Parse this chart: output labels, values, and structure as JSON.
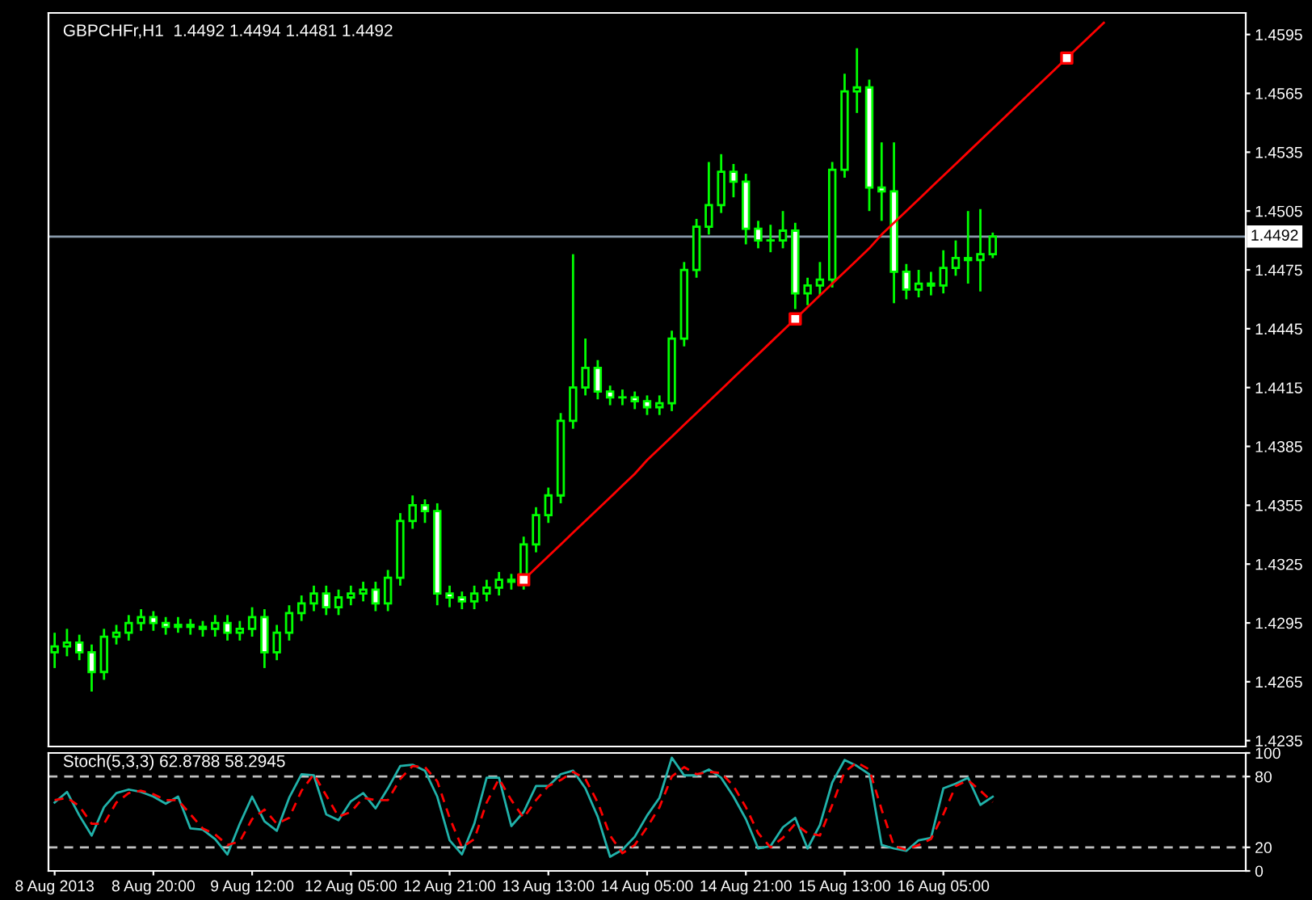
{
  "chart_data": [
    {
      "type": "candlestick",
      "title": "GBPCHFr,H1  1.4492 1.4494 1.4481 1.4492",
      "color": "#00ff00",
      "categories": [
        null,
        null,
        null,
        null,
        null,
        null,
        null,
        null,
        null,
        null,
        null,
        null,
        null,
        null,
        null,
        null,
        null,
        null,
        null,
        null,
        null,
        null,
        null,
        null,
        null,
        null,
        null,
        null,
        null,
        null,
        null,
        null,
        null,
        null,
        null,
        null,
        null,
        null,
        null,
        null,
        null,
        null,
        null,
        null,
        null,
        null,
        null,
        null,
        null,
        null,
        null,
        null,
        null,
        null,
        null,
        null,
        null,
        null,
        null,
        null,
        null,
        null,
        null,
        null,
        null,
        null,
        null,
        null,
        null,
        null,
        null,
        null,
        null,
        null,
        null,
        null,
        null,
        null,
        null,
        null,
        null,
        null,
        null,
        null,
        null,
        null,
        null,
        null,
        null,
        null,
        null,
        null,
        null,
        null,
        null,
        null,
        null
      ],
      "ohlc": [
        [
          1.428,
          1.429,
          1.4272,
          1.4283
        ],
        [
          1.4283,
          1.4292,
          1.4278,
          1.4285
        ],
        [
          1.4285,
          1.4289,
          1.4276,
          1.428
        ],
        [
          1.428,
          1.4284,
          1.426,
          1.427
        ],
        [
          1.427,
          1.4292,
          1.4266,
          1.4288
        ],
        [
          1.4288,
          1.4294,
          1.4284,
          1.429
        ],
        [
          1.429,
          1.4299,
          1.4286,
          1.4295
        ],
        [
          1.4295,
          1.4302,
          1.4291,
          1.4298
        ],
        [
          1.4298,
          1.4301,
          1.4291,
          1.4295
        ],
        [
          1.4295,
          1.4298,
          1.4289,
          1.4293
        ],
        [
          1.4293,
          1.4298,
          1.429,
          1.4294
        ],
        [
          1.4294,
          1.4297,
          1.4289,
          1.4293
        ],
        [
          1.4293,
          1.4296,
          1.4288,
          1.4292
        ],
        [
          1.4292,
          1.4299,
          1.4288,
          1.4295
        ],
        [
          1.4295,
          1.4299,
          1.4286,
          1.429
        ],
        [
          1.429,
          1.4296,
          1.4286,
          1.4292
        ],
        [
          1.4292,
          1.4303,
          1.4288,
          1.4298
        ],
        [
          1.4298,
          1.4302,
          1.4272,
          1.428
        ],
        [
          1.428,
          1.4294,
          1.4276,
          1.429
        ],
        [
          1.429,
          1.4304,
          1.4286,
          1.43
        ],
        [
          1.43,
          1.4309,
          1.4296,
          1.4305
        ],
        [
          1.4305,
          1.4314,
          1.4301,
          1.431
        ],
        [
          1.431,
          1.4314,
          1.4299,
          1.4303
        ],
        [
          1.4303,
          1.4312,
          1.4299,
          1.4308
        ],
        [
          1.4308,
          1.4314,
          1.4304,
          1.431
        ],
        [
          1.431,
          1.4316,
          1.4306,
          1.4312
        ],
        [
          1.4312,
          1.4316,
          1.4301,
          1.4305
        ],
        [
          1.4305,
          1.4322,
          1.4301,
          1.4318
        ],
        [
          1.4318,
          1.4351,
          1.4314,
          1.4347
        ],
        [
          1.4347,
          1.436,
          1.4343,
          1.4355
        ],
        [
          1.4355,
          1.4358,
          1.4346,
          1.4352
        ],
        [
          1.4352,
          1.4356,
          1.4304,
          1.431
        ],
        [
          1.431,
          1.4314,
          1.4303,
          1.4308
        ],
        [
          1.4308,
          1.4311,
          1.4302,
          1.4306
        ],
        [
          1.4306,
          1.4314,
          1.4302,
          1.431
        ],
        [
          1.431,
          1.4317,
          1.4306,
          1.4313
        ],
        [
          1.4313,
          1.4321,
          1.4309,
          1.4317
        ],
        [
          1.4317,
          1.432,
          1.4312,
          1.4316
        ],
        [
          1.4316,
          1.4339,
          1.4312,
          1.4335
        ],
        [
          1.4335,
          1.4354,
          1.4331,
          1.435
        ],
        [
          1.435,
          1.4364,
          1.4346,
          1.436
        ],
        [
          1.436,
          1.4402,
          1.4356,
          1.4398
        ],
        [
          1.4398,
          1.4483,
          1.4394,
          1.4415
        ],
        [
          1.4415,
          1.444,
          1.4411,
          1.4425
        ],
        [
          1.4425,
          1.4429,
          1.4409,
          1.4413
        ],
        [
          1.4413,
          1.4416,
          1.4406,
          1.441
        ],
        [
          1.441,
          1.4414,
          1.4406,
          1.441
        ],
        [
          1.441,
          1.4413,
          1.4404,
          1.4408
        ],
        [
          1.4408,
          1.4411,
          1.4401,
          1.4405
        ],
        [
          1.4405,
          1.4411,
          1.4401,
          1.4407
        ],
        [
          1.4407,
          1.4444,
          1.4403,
          1.444
        ],
        [
          1.444,
          1.4479,
          1.4436,
          1.4475
        ],
        [
          1.4475,
          1.4501,
          1.4471,
          1.4497
        ],
        [
          1.4497,
          1.453,
          1.4493,
          1.4508
        ],
        [
          1.4508,
          1.4534,
          1.4504,
          1.4525
        ],
        [
          1.4525,
          1.4529,
          1.4512,
          1.452
        ],
        [
          1.452,
          1.4524,
          1.4488,
          1.4496
        ],
        [
          1.4496,
          1.45,
          1.4486,
          1.449
        ],
        [
          1.449,
          1.4498,
          1.4484,
          1.449
        ],
        [
          1.449,
          1.4505,
          1.4486,
          1.4495
        ],
        [
          1.4495,
          1.4499,
          1.4455,
          1.4463
        ],
        [
          1.4463,
          1.4471,
          1.4457,
          1.4467
        ],
        [
          1.4467,
          1.4479,
          1.4462,
          1.447
        ],
        [
          1.447,
          1.453,
          1.4466,
          1.4526
        ],
        [
          1.4526,
          1.4575,
          1.4522,
          1.4566
        ],
        [
          1.4566,
          1.4588,
          1.4555,
          1.4568
        ],
        [
          1.4568,
          1.4572,
          1.4505,
          1.4517
        ],
        [
          1.4517,
          1.454,
          1.45,
          1.4515
        ],
        [
          1.4515,
          1.454,
          1.4458,
          1.4474
        ],
        [
          1.4474,
          1.4478,
          1.446,
          1.4465
        ],
        [
          1.4465,
          1.4475,
          1.4461,
          1.4468
        ],
        [
          1.4468,
          1.4474,
          1.4462,
          1.4467
        ],
        [
          1.4467,
          1.4485,
          1.4463,
          1.4476
        ],
        [
          1.4476,
          1.449,
          1.4472,
          1.4481
        ],
        [
          1.4481,
          1.4505,
          1.4468,
          1.448
        ],
        [
          1.448,
          1.4506,
          1.4464,
          1.4483
        ],
        [
          1.4483,
          1.4494,
          1.4481,
          1.4492
        ],
        null,
        null,
        null,
        null,
        null,
        null,
        null,
        null,
        null,
        null,
        null,
        null,
        null,
        null,
        null,
        null,
        null,
        null,
        null,
        null
      ],
      "series": [
        {
          "type": "line",
          "color": "#ff0000",
          "values": [
            null,
            null,
            null,
            null,
            null,
            null,
            null,
            null,
            null,
            null,
            null,
            null,
            null,
            null,
            null,
            null,
            null,
            null,
            null,
            null,
            null,
            null,
            null,
            null,
            null,
            null,
            null,
            null,
            null,
            null,
            null,
            null,
            null,
            null,
            null,
            null,
            null,
            null,
            1.4317,
            1.4323,
            1.4329,
            1.4335,
            1.4341,
            1.4347,
            1.4353,
            1.4359,
            1.4365,
            1.4371,
            1.4378,
            1.4384,
            1.439,
            1.4396,
            1.4402,
            1.4408,
            1.4414,
            1.442,
            1.4426,
            1.4432,
            1.4438,
            1.4444,
            1.445,
            1.4456,
            1.4462,
            1.4468,
            1.4474,
            1.448,
            1.4486,
            1.4493,
            1.4499,
            1.4505,
            1.4511,
            1.4517,
            1.4523,
            1.4529,
            1.4535,
            1.4541,
            1.4547,
            1.4553,
            1.4559,
            1.4565,
            1.4571,
            1.4577,
            1.4583,
            1.4589,
            1.4595,
            1.4601,
            null,
            null,
            null,
            null,
            null,
            null,
            null,
            null,
            null,
            null,
            null
          ]
        },
        {
          "type": "scatter",
          "color": "#ff0000",
          "marker": "square",
          "values": [
            null,
            null,
            null,
            null,
            null,
            null,
            null,
            null,
            null,
            null,
            null,
            null,
            null,
            null,
            null,
            null,
            null,
            null,
            null,
            null,
            null,
            null,
            null,
            null,
            null,
            null,
            null,
            null,
            null,
            null,
            null,
            null,
            null,
            null,
            null,
            null,
            null,
            null,
            1.4317,
            null,
            null,
            null,
            null,
            null,
            null,
            null,
            null,
            null,
            null,
            null,
            null,
            null,
            null,
            null,
            null,
            null,
            null,
            null,
            null,
            null,
            1.445,
            null,
            null,
            null,
            null,
            null,
            null,
            null,
            null,
            null,
            null,
            null,
            null,
            null,
            null,
            null,
            null,
            null,
            null,
            null,
            null,
            null,
            1.4583,
            null,
            null,
            null,
            null,
            null,
            null,
            null,
            null,
            null,
            null,
            null,
            null,
            null,
            null
          ]
        }
      ],
      "ylim": [
        1.4232,
        1.4606
      ],
      "yticks": [
        1.4235,
        1.4265,
        1.4295,
        1.4325,
        1.4355,
        1.4385,
        1.4415,
        1.4445,
        1.4475,
        1.4505,
        1.4535,
        1.4565,
        1.4595
      ],
      "ref_lines": [
        {
          "axis": "y",
          "value": 1.4492,
          "label": "1.4492",
          "color": "#8899aa"
        }
      ],
      "tick_labels": "y"
    },
    {
      "type": "line",
      "title": "Stoch(5,3,3) 62.8788 58.2945",
      "categories": [
        "8 Aug 2013",
        null,
        null,
        null,
        null,
        null,
        null,
        null,
        "8 Aug 20:00",
        null,
        null,
        null,
        null,
        null,
        null,
        null,
        "9 Aug 12:00",
        null,
        null,
        null,
        null,
        null,
        null,
        null,
        "12 Aug 05:00",
        null,
        null,
        null,
        null,
        null,
        null,
        null,
        "12 Aug 21:00",
        null,
        null,
        null,
        null,
        null,
        null,
        null,
        "13 Aug 13:00",
        null,
        null,
        null,
        null,
        null,
        null,
        null,
        "14 Aug 05:00",
        null,
        null,
        null,
        null,
        null,
        null,
        null,
        "14 Aug 21:00",
        null,
        null,
        null,
        null,
        null,
        null,
        null,
        "15 Aug 13:00",
        null,
        null,
        null,
        null,
        null,
        null,
        null,
        "16 Aug 05:00",
        null,
        null,
        null,
        null,
        null,
        null,
        null,
        null,
        null,
        null,
        null,
        null,
        null,
        null,
        null,
        null,
        null,
        null,
        null,
        null,
        null,
        null,
        null,
        null
      ],
      "series": [
        {
          "color": "#20b2aa",
          "line_style": "solid",
          "values": [
            58,
            67,
            47,
            30,
            54,
            66,
            69,
            67,
            63,
            57,
            63,
            36,
            35,
            27,
            14,
            40,
            63,
            42,
            34,
            62,
            82,
            81,
            48,
            43,
            59,
            66,
            53,
            70,
            89,
            90,
            85,
            63,
            26,
            14,
            40,
            79,
            79,
            38,
            50,
            72,
            72,
            82,
            85,
            70,
            46,
            12,
            18,
            29,
            47,
            62,
            96,
            81,
            81,
            86,
            79,
            63,
            44,
            19,
            21,
            37,
            45,
            19,
            39,
            75,
            94,
            89,
            82,
            22,
            19,
            17,
            26,
            28,
            70,
            74,
            79,
            56,
            62.8788,
            null,
            null,
            null,
            null,
            null,
            null,
            null,
            null,
            null,
            null,
            null,
            null,
            null,
            null,
            null,
            null,
            null,
            null,
            null,
            null
          ]
        },
        {
          "color": "#ff0000",
          "line_style": "dashed",
          "values": [
            60,
            62,
            55,
            40,
            40,
            58,
            66,
            68,
            65,
            60,
            60,
            48,
            36,
            31,
            22,
            25,
            44,
            52,
            40,
            45,
            68,
            82,
            64,
            46,
            50,
            62,
            60,
            60,
            78,
            89,
            88,
            76,
            45,
            20,
            27,
            58,
            78,
            60,
            45,
            60,
            72,
            77,
            84,
            78,
            58,
            30,
            15,
            22,
            37,
            54,
            80,
            88,
            82,
            84,
            83,
            72,
            54,
            32,
            20,
            28,
            40,
            32,
            30,
            56,
            84,
            92,
            86,
            52,
            21,
            18,
            22,
            27,
            48,
            72,
            77,
            68,
            58.2945,
            null,
            null,
            null,
            null,
            null,
            null,
            null,
            null,
            null,
            null,
            null,
            null,
            null,
            null,
            null,
            null,
            null,
            null,
            null,
            null
          ]
        }
      ],
      "ylim": [
        0,
        100
      ],
      "yticks": [
        0,
        20,
        80,
        100
      ],
      "ref_lines": [
        {
          "axis": "y",
          "value": 20,
          "color": "#c0c0c0",
          "line_style": "dashed"
        },
        {
          "axis": "y",
          "value": 80,
          "color": "#c0c0c0",
          "line_style": "dashed"
        }
      ]
    }
  ]
}
